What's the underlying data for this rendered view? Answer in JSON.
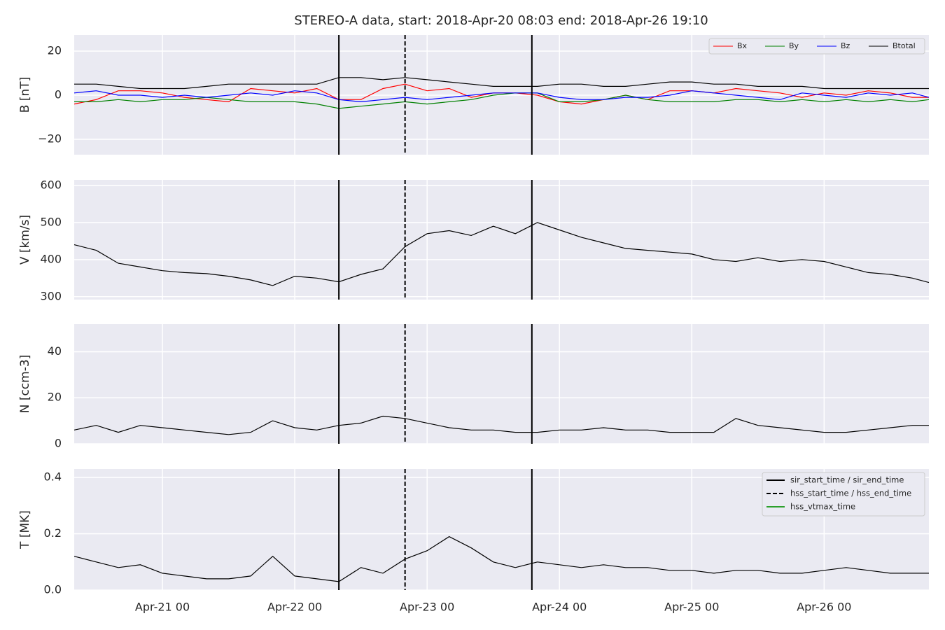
{
  "title": "STEREO-A data, start: 2018-Apr-20 08:03  end: 2018-Apr-26 19:10",
  "events": {
    "legend": "upper right",
    "series": [
      {
        "name": "sir_start_time / sir_end_time",
        "color": "#000000",
        "dashed": false,
        "times": [
          "Apr-22 08",
          "Apr-23 19"
        ]
      },
      {
        "name": "hss_start_time / hss_end_time",
        "color": "#000000",
        "dashed": true,
        "times": [
          "Apr-22 20"
        ]
      },
      {
        "name": "hss_vtmax_time",
        "color": "#2ca02c",
        "dashed": false,
        "times": []
      }
    ]
  },
  "chart_data": [
    {
      "type": "line",
      "ylabel": "B [nT]",
      "legend": "upper right",
      "grid": true,
      "xlim": [
        "Apr-20 08",
        "Apr-26 19"
      ],
      "xticks": [
        "Apr-21 00",
        "Apr-22 00",
        "Apr-23 00",
        "Apr-24 00",
        "Apr-25 00",
        "Apr-26 00"
      ],
      "ylim": [
        -27,
        27.3
      ],
      "yticks": [
        {
          "value": -20,
          "label": "−20"
        },
        0,
        20
      ],
      "x": [
        "Apr-20 08",
        "Apr-20 12",
        "Apr-20 16",
        "Apr-20 20",
        "Apr-21 00",
        "Apr-21 04",
        "Apr-21 08",
        "Apr-21 12",
        "Apr-21 16",
        "Apr-21 20",
        "Apr-22 00",
        "Apr-22 04",
        "Apr-22 08",
        "Apr-22 12",
        "Apr-22 16",
        "Apr-22 20",
        "Apr-23 00",
        "Apr-23 04",
        "Apr-23 08",
        "Apr-23 12",
        "Apr-23 16",
        "Apr-23 20",
        "Apr-24 00",
        "Apr-24 04",
        "Apr-24 08",
        "Apr-24 12",
        "Apr-24 16",
        "Apr-24 20",
        "Apr-25 00",
        "Apr-25 04",
        "Apr-25 08",
        "Apr-25 12",
        "Apr-25 16",
        "Apr-25 20",
        "Apr-26 00",
        "Apr-26 04",
        "Apr-26 08",
        "Apr-26 12",
        "Apr-26 16",
        "Apr-26 19"
      ],
      "series": [
        {
          "name": "Bx",
          "color": "#ff0000",
          "values": [
            -4,
            -2,
            2,
            2,
            1,
            -1,
            -2,
            -3,
            3,
            2,
            1,
            3,
            -2,
            -2,
            3,
            5,
            2,
            3,
            -1,
            1,
            1,
            0,
            -3,
            -4,
            -2,
            0,
            -2,
            2,
            2,
            1,
            3,
            2,
            1,
            -1,
            1,
            0,
            2,
            1,
            -1,
            -1
          ]
        },
        {
          "name": "By",
          "color": "#008000",
          "values": [
            -3,
            -3,
            -2,
            -3,
            -2,
            -2,
            -1,
            -2,
            -3,
            -3,
            -3,
            -4,
            -6,
            -5,
            -4,
            -3,
            -4,
            -3,
            -2,
            0,
            1,
            1,
            -3,
            -3,
            -2,
            0,
            -2,
            -3,
            -3,
            -3,
            -2,
            -2,
            -3,
            -2,
            -3,
            -2,
            -3,
            -2,
            -3,
            -2
          ]
        },
        {
          "name": "Bz",
          "color": "#0000ff",
          "values": [
            1,
            2,
            0,
            0,
            -1,
            0,
            -1,
            0,
            1,
            0,
            2,
            1,
            -2,
            -3,
            -2,
            -1,
            -2,
            -1,
            0,
            1,
            1,
            1,
            -1,
            -2,
            -2,
            -1,
            -1,
            0,
            2,
            1,
            0,
            -1,
            -2,
            1,
            0,
            -1,
            1,
            0,
            1,
            -1
          ]
        },
        {
          "name": "Btotal",
          "color": "#000000",
          "values": [
            5,
            5,
            4,
            3,
            3,
            3,
            4,
            5,
            5,
            5,
            5,
            5,
            8,
            8,
            7,
            8,
            7,
            6,
            5,
            4,
            4,
            4,
            5,
            5,
            4,
            4,
            5,
            6,
            6,
            5,
            5,
            4,
            4,
            4,
            3,
            3,
            3,
            3,
            3,
            3
          ]
        }
      ]
    },
    {
      "type": "line",
      "ylabel": "V [km/s]",
      "grid": true,
      "xlim": [
        "Apr-20 08",
        "Apr-26 19"
      ],
      "xticks": [
        "Apr-21 00",
        "Apr-22 00",
        "Apr-23 00",
        "Apr-24 00",
        "Apr-25 00",
        "Apr-26 00"
      ],
      "ylim": [
        292,
        615
      ],
      "yticks": [
        300,
        400,
        500,
        600
      ],
      "x": [
        "Apr-20 08",
        "Apr-20 12",
        "Apr-20 16",
        "Apr-20 20",
        "Apr-21 00",
        "Apr-21 04",
        "Apr-21 08",
        "Apr-21 12",
        "Apr-21 16",
        "Apr-21 20",
        "Apr-22 00",
        "Apr-22 04",
        "Apr-22 08",
        "Apr-22 12",
        "Apr-22 16",
        "Apr-22 20",
        "Apr-23 00",
        "Apr-23 04",
        "Apr-23 08",
        "Apr-23 12",
        "Apr-23 16",
        "Apr-23 20",
        "Apr-24 00",
        "Apr-24 04",
        "Apr-24 08",
        "Apr-24 12",
        "Apr-24 16",
        "Apr-24 20",
        "Apr-25 00",
        "Apr-25 04",
        "Apr-25 08",
        "Apr-25 12",
        "Apr-25 16",
        "Apr-25 20",
        "Apr-26 00",
        "Apr-26 04",
        "Apr-26 08",
        "Apr-26 12",
        "Apr-26 16",
        "Apr-26 19"
      ],
      "series": [
        {
          "color": "#000000",
          "values": [
            440,
            425,
            390,
            380,
            370,
            365,
            362,
            355,
            345,
            330,
            355,
            350,
            340,
            360,
            375,
            435,
            470,
            478,
            465,
            490,
            470,
            500,
            480,
            460,
            445,
            430,
            425,
            420,
            415,
            400,
            395,
            405,
            395,
            400,
            395,
            380,
            365,
            360,
            350,
            338
          ]
        }
      ]
    },
    {
      "type": "line",
      "ylabel": "N [ccm-3]",
      "grid": true,
      "xlim": [
        "Apr-20 08",
        "Apr-26 19"
      ],
      "xticks": [
        "Apr-21 00",
        "Apr-22 00",
        "Apr-23 00",
        "Apr-24 00",
        "Apr-25 00",
        "Apr-26 00"
      ],
      "ylim": [
        0,
        52
      ],
      "yticks": [
        0,
        20,
        40
      ],
      "x": [
        "Apr-20 08",
        "Apr-20 12",
        "Apr-20 16",
        "Apr-20 20",
        "Apr-21 00",
        "Apr-21 04",
        "Apr-21 08",
        "Apr-21 12",
        "Apr-21 16",
        "Apr-21 20",
        "Apr-22 00",
        "Apr-22 04",
        "Apr-22 08",
        "Apr-22 12",
        "Apr-22 16",
        "Apr-22 20",
        "Apr-23 00",
        "Apr-23 04",
        "Apr-23 08",
        "Apr-23 12",
        "Apr-23 16",
        "Apr-23 20",
        "Apr-24 00",
        "Apr-24 04",
        "Apr-24 08",
        "Apr-24 12",
        "Apr-24 16",
        "Apr-24 20",
        "Apr-25 00",
        "Apr-25 04",
        "Apr-25 08",
        "Apr-25 12",
        "Apr-25 16",
        "Apr-25 20",
        "Apr-26 00",
        "Apr-26 04",
        "Apr-26 08",
        "Apr-26 12",
        "Apr-26 16",
        "Apr-26 19"
      ],
      "series": [
        {
          "color": "#000000",
          "values": [
            6,
            8,
            5,
            8,
            7,
            6,
            5,
            4,
            5,
            10,
            7,
            6,
            8,
            9,
            12,
            11,
            9,
            7,
            6,
            6,
            5,
            5,
            6,
            6,
            7,
            6,
            6,
            5,
            5,
            5,
            11,
            8,
            7,
            6,
            5,
            5,
            6,
            7,
            8,
            8
          ]
        }
      ]
    },
    {
      "type": "line",
      "ylabel": "T [MK]",
      "grid": true,
      "xlim": [
        "Apr-20 08",
        "Apr-26 19"
      ],
      "xticks": [
        "Apr-21 00",
        "Apr-22 00",
        "Apr-23 00",
        "Apr-24 00",
        "Apr-25 00",
        "Apr-26 00"
      ],
      "ylim": [
        0,
        0.43
      ],
      "yticks": [
        {
          "value": 0,
          "label": "0.0"
        },
        0.2,
        0.4
      ],
      "x": [
        "Apr-20 08",
        "Apr-20 12",
        "Apr-20 16",
        "Apr-20 20",
        "Apr-21 00",
        "Apr-21 04",
        "Apr-21 08",
        "Apr-21 12",
        "Apr-21 16",
        "Apr-21 20",
        "Apr-22 00",
        "Apr-22 04",
        "Apr-22 08",
        "Apr-22 12",
        "Apr-22 16",
        "Apr-22 20",
        "Apr-23 00",
        "Apr-23 04",
        "Apr-23 08",
        "Apr-23 12",
        "Apr-23 16",
        "Apr-23 20",
        "Apr-24 00",
        "Apr-24 04",
        "Apr-24 08",
        "Apr-24 12",
        "Apr-24 16",
        "Apr-24 20",
        "Apr-25 00",
        "Apr-25 04",
        "Apr-25 08",
        "Apr-25 12",
        "Apr-25 16",
        "Apr-25 20",
        "Apr-26 00",
        "Apr-26 04",
        "Apr-26 08",
        "Apr-26 12",
        "Apr-26 16",
        "Apr-26 19"
      ],
      "series": [
        {
          "color": "#000000",
          "values": [
            0.12,
            0.1,
            0.08,
            0.09,
            0.06,
            0.05,
            0.04,
            0.04,
            0.05,
            0.12,
            0.05,
            0.04,
            0.03,
            0.08,
            0.06,
            0.11,
            0.14,
            0.19,
            0.15,
            0.1,
            0.08,
            0.1,
            0.09,
            0.08,
            0.09,
            0.08,
            0.08,
            0.07,
            0.07,
            0.06,
            0.07,
            0.07,
            0.06,
            0.06,
            0.07,
            0.08,
            0.07,
            0.06,
            0.06,
            0.06
          ]
        }
      ]
    }
  ]
}
